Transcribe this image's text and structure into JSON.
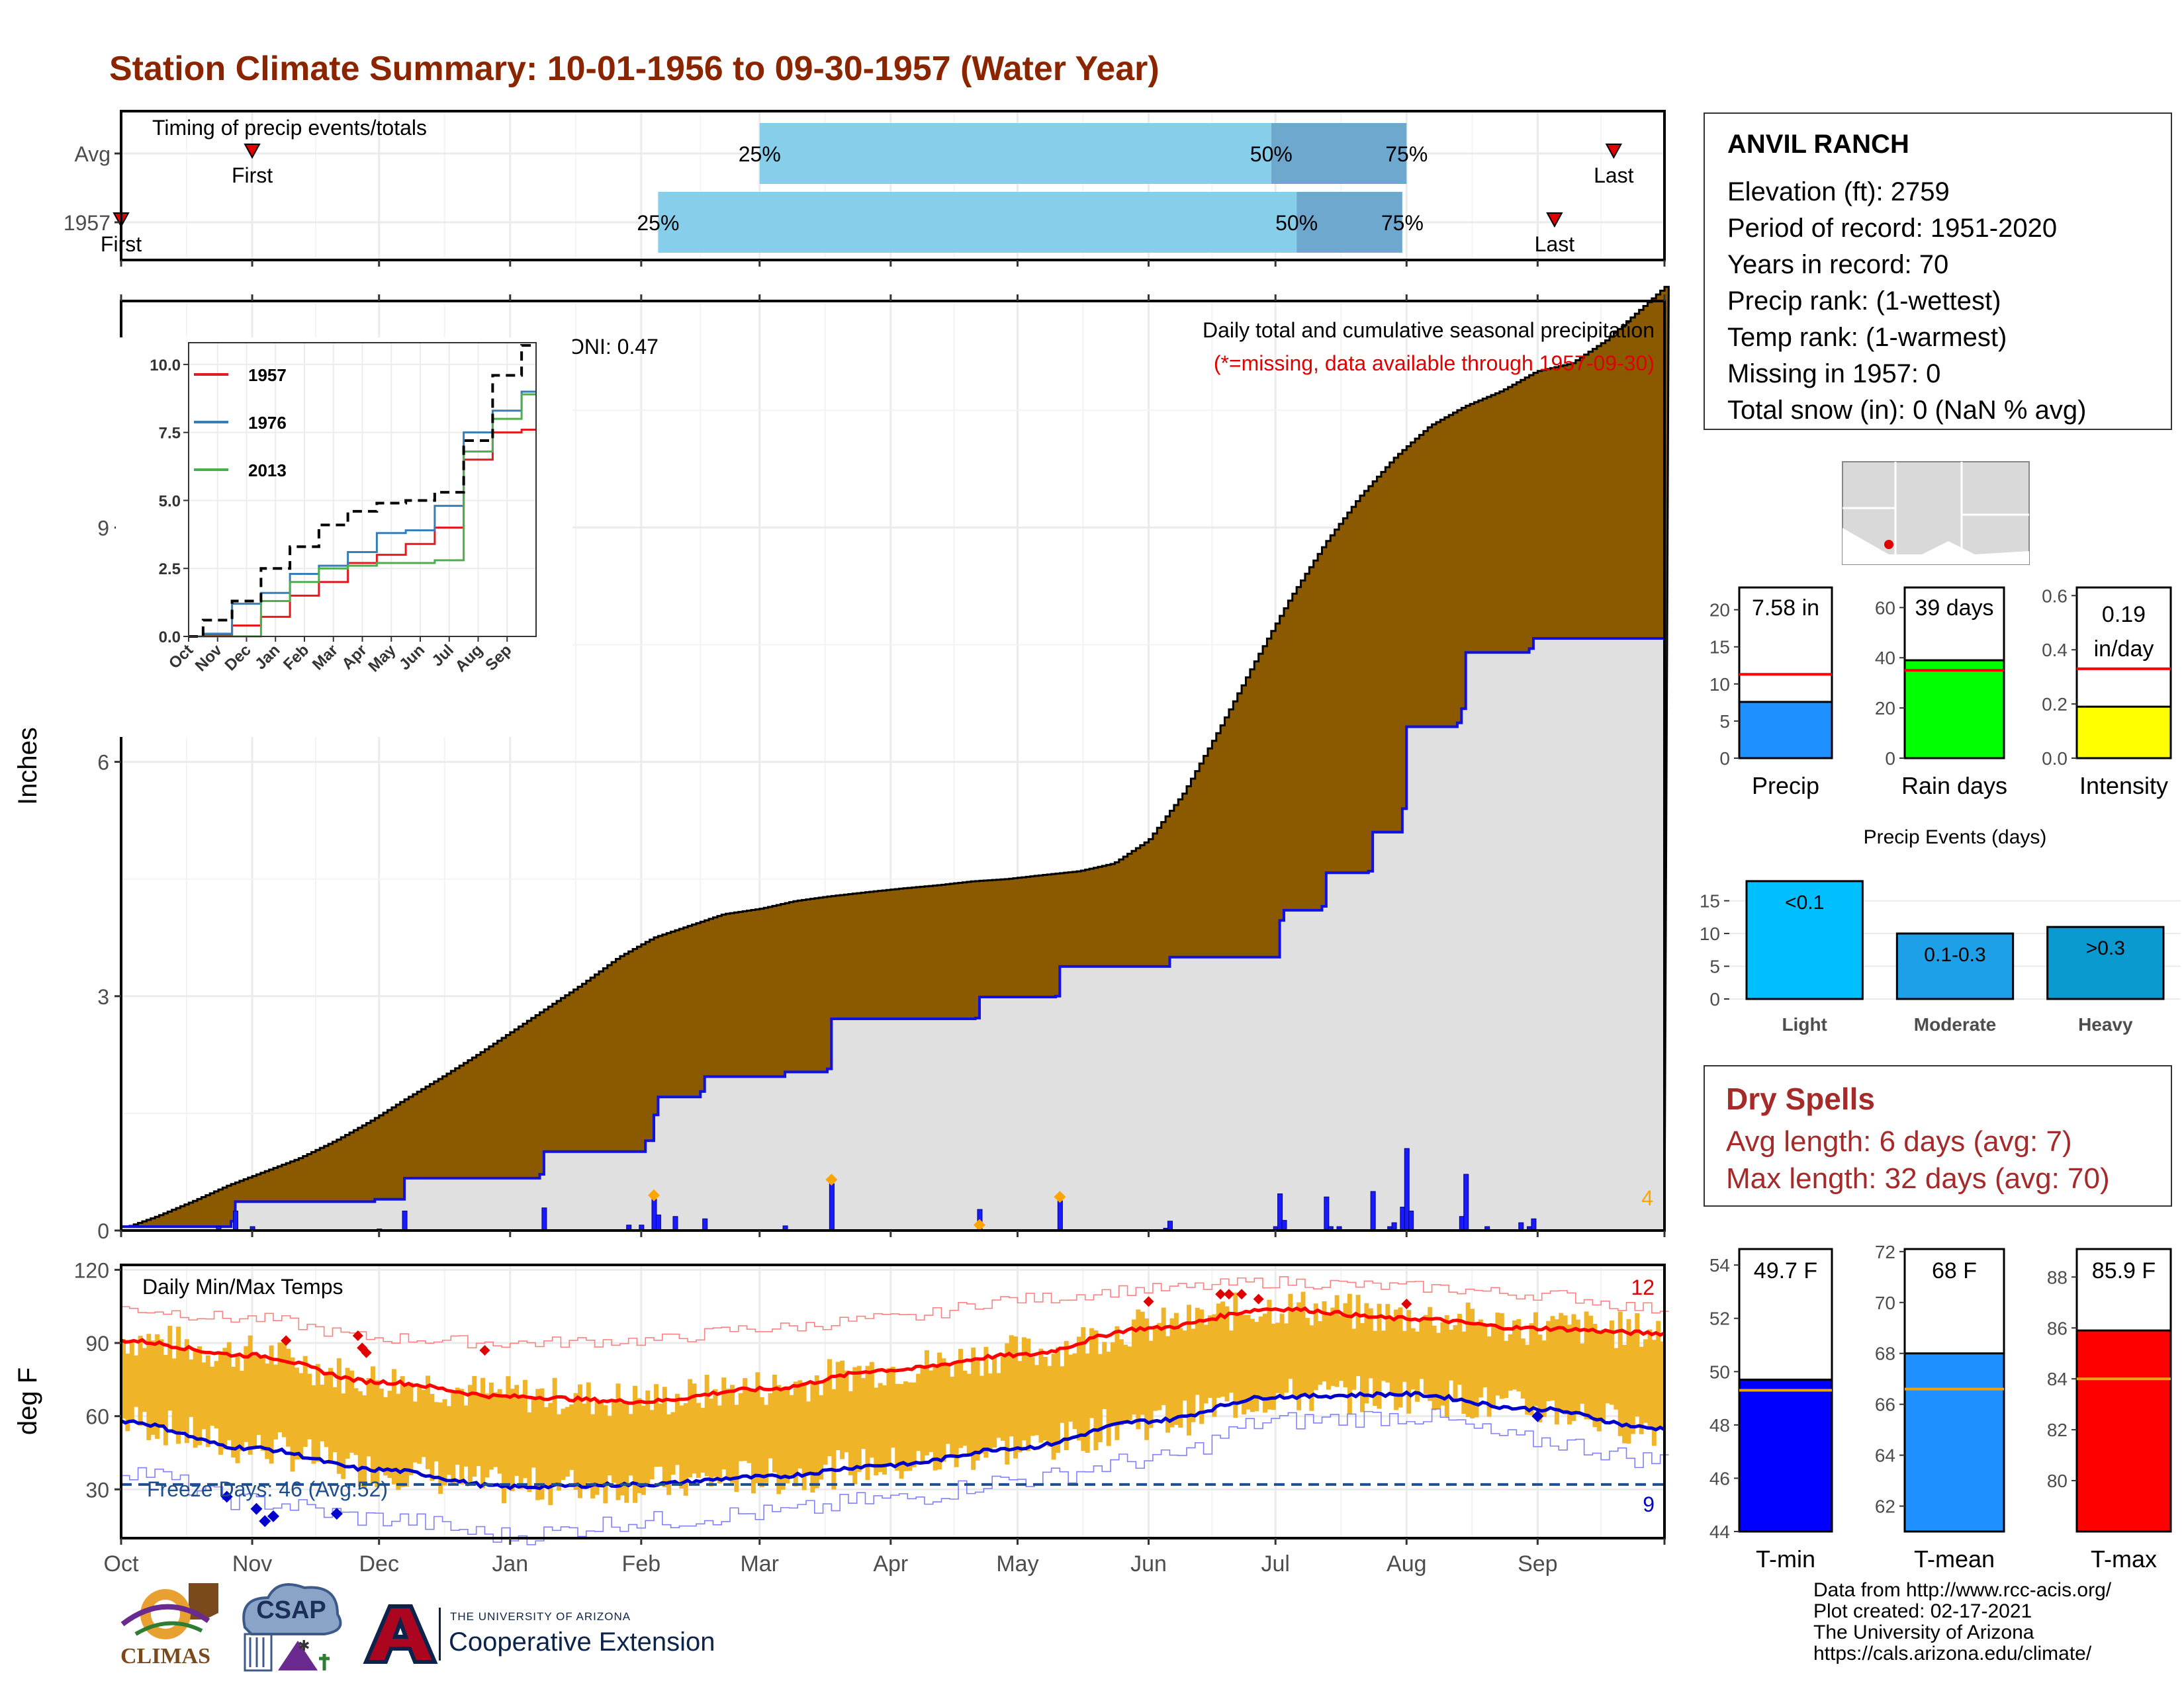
{
  "title": "Station Climate Summary: 10-01-1956 to 09-30-1957 (Water Year)",
  "months": [
    "Oct",
    "Nov",
    "Dec",
    "Jan",
    "Feb",
    "Mar",
    "Apr",
    "May",
    "Jun",
    "Jul",
    "Aug",
    "Sep"
  ],
  "station": {
    "name": "ANVIL RANCH",
    "lines": [
      "Elevation (ft): 2759",
      "Period of record: 1951-2020",
      "Years in record: 70",
      "Precip rank:  (1-wettest)",
      "Temp rank:  (1-warmest)",
      "Missing in 1957: 0",
      "Total snow (in): 0 (NaN % avg)"
    ]
  },
  "dry_spells": {
    "title": "Dry Spells",
    "lines": [
      "Avg length: 6 days (avg: 7)",
      "Max length: 32 days (avg: 70)"
    ]
  },
  "credits": [
    "Data from http://www.rcc-acis.org/",
    "Plot created: 02-17-2021",
    "The University of Arizona",
    "https://cals.arizona.edu/climate/"
  ],
  "logos": {
    "climas": "CLIMAS",
    "csap": "CSAP",
    "ua_small": "THE UNIVERSITY OF ARIZONA",
    "ua_big": "Cooperative Extension"
  },
  "colors": {
    "title": "#8b2500",
    "precip_fill": "#8b5a00",
    "normal_fill": "#e0e0e0",
    "daily_bar": "#1a1aff",
    "quartile_light": "#87ceeb",
    "quartile_dark": "#6fa8cf",
    "temp_bar": "#f0b429",
    "tmax": "#ff0000",
    "tmin": "#0000cd"
  },
  "chart_data": [
    {
      "id": "timing",
      "type": "bar",
      "title": "Timing of precip events/totals",
      "rows": [
        {
          "label": "Avg",
          "first": "Nov 1",
          "q25": "Mar 1",
          "q50": "Jun 30",
          "q75": "Aug 1",
          "last": "Sep 19"
        },
        {
          "label": "1957",
          "first": "Oct 1",
          "q25": "Feb 5",
          "q50": "Jul 6",
          "q75": "Jul 31",
          "last": "Sep 5"
        }
      ],
      "marker_labels": {
        "first": "First",
        "last": "Last",
        "q25": "25%",
        "q50": "50%",
        "q75": "75%"
      }
    },
    {
      "id": "precip",
      "type": "area",
      "title": "Daily total and cumulative seasonal precipitation",
      "subtitle": "(*=missing, data available through 1957-09-30)",
      "ylabel": "Inches",
      "ylim": [
        0,
        11.9
      ],
      "yticks": [
        0,
        3,
        6,
        9
      ],
      "oni": "ONI: 0.47",
      "corner_count": "4",
      "cumulative_avg": [
        [
          0,
          0.02
        ],
        [
          15,
          0.18
        ],
        [
          31,
          0.38
        ],
        [
          46,
          0.58
        ],
        [
          61,
          0.75
        ],
        [
          76,
          0.92
        ],
        [
          92,
          1.15
        ],
        [
          107,
          1.4
        ],
        [
          122,
          1.68
        ],
        [
          137,
          1.95
        ],
        [
          153,
          2.25
        ],
        [
          168,
          2.55
        ],
        [
          183,
          2.85
        ],
        [
          198,
          3.15
        ],
        [
          214,
          3.5
        ],
        [
          229,
          3.75
        ],
        [
          244,
          3.9
        ],
        [
          259,
          4.05
        ],
        [
          275,
          4.12
        ],
        [
          290,
          4.22
        ],
        [
          305,
          4.28
        ],
        [
          320,
          4.33
        ],
        [
          336,
          4.38
        ],
        [
          351,
          4.42
        ],
        [
          366,
          4.47
        ],
        [
          381,
          4.5
        ],
        [
          396,
          4.55
        ],
        [
          412,
          4.6
        ],
        [
          427,
          4.7
        ],
        [
          442,
          5.0
        ],
        [
          457,
          5.6
        ],
        [
          472,
          6.4
        ],
        [
          488,
          7.3
        ],
        [
          503,
          8.1
        ],
        [
          518,
          8.8
        ],
        [
          533,
          9.4
        ],
        [
          548,
          9.9
        ],
        [
          563,
          10.3
        ],
        [
          578,
          10.55
        ],
        [
          594,
          10.75
        ],
        [
          609,
          11.0
        ],
        [
          624,
          11.1
        ],
        [
          639,
          11.4
        ],
        [
          665,
          12.1
        ]
      ],
      "cumulative_1957": [
        [
          "10-01",
          0.05
        ],
        [
          "10-24",
          0.05
        ],
        [
          "10-27",
          0.12
        ],
        [
          "10-28",
          0.37
        ],
        [
          "11-30",
          0.4
        ],
        [
          "12-07",
          0.67
        ],
        [
          "01-08",
          0.72
        ],
        [
          "01-09",
          1.01
        ],
        [
          "02-01",
          1.01
        ],
        [
          "02-02",
          1.15
        ],
        [
          "02-04",
          1.48
        ],
        [
          "02-05",
          1.71
        ],
        [
          "02-15",
          1.78
        ],
        [
          "02-16",
          1.97
        ],
        [
          "03-06",
          1.97
        ],
        [
          "03-07",
          2.03
        ],
        [
          "03-17",
          2.07
        ],
        [
          "03-18",
          2.71
        ],
        [
          "04-21",
          2.72
        ],
        [
          "04-22",
          2.99
        ],
        [
          "05-10",
          3.0
        ],
        [
          "05-11",
          3.38
        ],
        [
          "06-05",
          3.38
        ],
        [
          "06-06",
          3.5
        ],
        [
          "07-01",
          3.5
        ],
        [
          "07-02",
          3.97
        ],
        [
          "07-03",
          4.1
        ],
        [
          "07-12",
          4.15
        ],
        [
          "07-13",
          4.58
        ],
        [
          "07-23",
          4.6
        ],
        [
          "07-24",
          5.1
        ],
        [
          "07-31",
          5.4
        ],
        [
          "08-01",
          6.45
        ],
        [
          "08-13",
          6.5
        ],
        [
          "08-14",
          6.68
        ],
        [
          "08-15",
          7.4
        ],
        [
          "08-30",
          7.45
        ],
        [
          "08-31",
          7.58
        ],
        [
          "09-30",
          7.58
        ]
      ],
      "daily_1957": [
        [
          "10-24",
          0.05
        ],
        [
          "10-28",
          0.25
        ],
        [
          "11-01",
          0.05
        ],
        [
          "12-01",
          0.02
        ],
        [
          "12-07",
          0.25
        ],
        [
          "01-09",
          0.29
        ],
        [
          "01-29",
          0.07
        ],
        [
          "02-01",
          0.07
        ],
        [
          "02-04",
          0.4
        ],
        [
          "02-05",
          0.2
        ],
        [
          "02-09",
          0.18
        ],
        [
          "02-16",
          0.15
        ],
        [
          "03-07",
          0.06
        ],
        [
          "03-18",
          0.6
        ],
        [
          "04-22",
          0.27
        ],
        [
          "05-11",
          0.38
        ],
        [
          "06-05",
          0.03
        ],
        [
          "06-06",
          0.12
        ],
        [
          "07-01",
          0.05
        ],
        [
          "07-02",
          0.47
        ],
        [
          "07-03",
          0.13
        ],
        [
          "07-13",
          0.43
        ],
        [
          "07-14",
          0.05
        ],
        [
          "07-16",
          0.05
        ],
        [
          "07-24",
          0.5
        ],
        [
          "07-28",
          0.05
        ],
        [
          "07-29",
          0.1
        ],
        [
          "07-31",
          0.3
        ],
        [
          "08-01",
          1.05
        ],
        [
          "08-02",
          0.25
        ],
        [
          "08-14",
          0.18
        ],
        [
          "08-15",
          0.72
        ],
        [
          "08-20",
          0.05
        ],
        [
          "08-28",
          0.1
        ],
        [
          "08-30",
          0.05
        ],
        [
          "08-31",
          0.15
        ]
      ],
      "inset": {
        "type": "line",
        "ylim": [
          0,
          10.8
        ],
        "yticks": [
          "0.0",
          "2.5",
          "5.0",
          "7.5",
          "10.0"
        ],
        "xticks": [
          "Oct",
          "Nov",
          "Dec",
          "Jan",
          "Feb",
          "Mar",
          "Apr",
          "May",
          "Jun",
          "Jul",
          "Aug",
          "Sep"
        ],
        "series": [
          {
            "name": "1957",
            "color": "#e41a1c",
            "values": [
              0,
              0.05,
              0.4,
              0.72,
              1.5,
              2.0,
              2.7,
              3.0,
              3.4,
              4.0,
              6.5,
              7.5,
              7.6
            ]
          },
          {
            "name": "1976",
            "color": "#377eb8",
            "values": [
              0,
              0.1,
              1.2,
              1.6,
              2.3,
              2.6,
              3.1,
              3.8,
              3.9,
              4.8,
              7.5,
              8.3,
              9.0
            ]
          },
          {
            "name": "2013",
            "color": "#4daf4a",
            "values": [
              0,
              0,
              0,
              1.3,
              2.0,
              2.5,
              2.6,
              2.7,
              2.7,
              2.8,
              6.8,
              8.0,
              8.9
            ]
          },
          {
            "name": "",
            "color": "#000000",
            "dashed": true,
            "values": [
              0,
              0.6,
              1.3,
              2.5,
              3.3,
              4.1,
              4.6,
              4.9,
              5.0,
              5.3,
              7.2,
              9.6,
              10.7
            ]
          }
        ]
      }
    },
    {
      "id": "temps",
      "type": "bar",
      "title": "Daily Min/Max Temps",
      "ylabel": "deg F",
      "ylim": [
        10,
        122
      ],
      "yticks": [
        30,
        60,
        90,
        120
      ],
      "freeze_label": "Freeze Days: 46 (Avg:52)",
      "count_hot": "12",
      "count_cold": "9",
      "tmax_avg": [
        [
          0,
          91
        ],
        [
          30,
          85
        ],
        [
          61,
          74
        ],
        [
          92,
          68
        ],
        [
          123,
          66
        ],
        [
          151,
          71
        ],
        [
          182,
          79
        ],
        [
          212,
          85
        ],
        [
          243,
          96
        ],
        [
          273,
          104
        ],
        [
          304,
          100
        ],
        [
          334,
          96
        ],
        [
          364,
          94
        ]
      ],
      "tmin_avg": [
        [
          0,
          58
        ],
        [
          30,
          47
        ],
        [
          61,
          38
        ],
        [
          92,
          31
        ],
        [
          123,
          32
        ],
        [
          151,
          35
        ],
        [
          182,
          40
        ],
        [
          212,
          47
        ],
        [
          243,
          58
        ],
        [
          273,
          68
        ],
        [
          304,
          69
        ],
        [
          334,
          63
        ],
        [
          364,
          55
        ]
      ],
      "tmax_rec": [
        [
          0,
          104
        ],
        [
          30,
          100
        ],
        [
          61,
          92
        ],
        [
          92,
          90
        ],
        [
          123,
          91
        ],
        [
          151,
          96
        ],
        [
          182,
          100
        ],
        [
          212,
          108
        ],
        [
          243,
          112
        ],
        [
          273,
          115
        ],
        [
          304,
          113
        ],
        [
          334,
          110
        ],
        [
          364,
          104
        ]
      ],
      "tmin_rec": [
        [
          0,
          38
        ],
        [
          30,
          25
        ],
        [
          61,
          18
        ],
        [
          92,
          11
        ],
        [
          123,
          17
        ],
        [
          151,
          20
        ],
        [
          182,
          26
        ],
        [
          212,
          34
        ],
        [
          243,
          42
        ],
        [
          273,
          58
        ],
        [
          304,
          60
        ],
        [
          334,
          50
        ],
        [
          364,
          42
        ]
      ],
      "freeze_line": 32
    },
    {
      "id": "precip_totals",
      "type": "bar",
      "panels": [
        {
          "category": "Precip",
          "value": 7.58,
          "label": "7.58 in",
          "avg": 11.3,
          "color": "#1e90ff",
          "ylim": [
            0,
            23
          ],
          "yticks": [
            0,
            5,
            10,
            15,
            20
          ]
        },
        {
          "category": "Rain days",
          "value": 39,
          "label": "39 days",
          "avg": 35,
          "color": "#00ff00",
          "ylim": [
            0,
            68
          ],
          "yticks": [
            0,
            20,
            40,
            60
          ]
        },
        {
          "category": "Intensity",
          "value": 0.19,
          "label_top": "0.19",
          "label_bottom": "in/day",
          "avg": 0.33,
          "color": "#ffff00",
          "ylim": [
            0,
            0.63
          ],
          "yticks": [
            0.0,
            0.2,
            0.4,
            0.6
          ]
        }
      ]
    },
    {
      "id": "precip_events",
      "type": "bar",
      "title": "Precip Events (days)",
      "categories": [
        "Light",
        "Moderate",
        "Heavy"
      ],
      "bar_labels": [
        "<0.1",
        "0.1-0.3",
        ">0.3"
      ],
      "values": [
        18,
        10,
        11
      ],
      "colors": [
        "#00bfff",
        "#1ea0e8",
        "#0b9ad0"
      ],
      "ylim": [
        0,
        19
      ],
      "yticks": [
        0,
        5,
        10,
        15
      ]
    },
    {
      "id": "temp_totals",
      "type": "bar",
      "panels": [
        {
          "category": "T-min",
          "value": 49.7,
          "label": "49.7 F",
          "avg": 49.3,
          "color": "#0000ff",
          "ylim": [
            44,
            54.6
          ],
          "yticks": [
            44,
            46,
            48,
            50,
            52,
            54
          ]
        },
        {
          "category": "T-mean",
          "value": 68,
          "label": "68 F",
          "avg": 66.6,
          "color": "#1e90ff",
          "ylim": [
            61,
            72.1
          ],
          "yticks": [
            62,
            64,
            66,
            68,
            70,
            72
          ]
        },
        {
          "category": "T-max",
          "value": 85.9,
          "label": "85.9 F",
          "avg": 84.0,
          "color": "#ff0000",
          "ylim": [
            78,
            89.1
          ],
          "yticks": [
            80,
            82,
            84,
            86,
            88
          ]
        }
      ]
    }
  ]
}
